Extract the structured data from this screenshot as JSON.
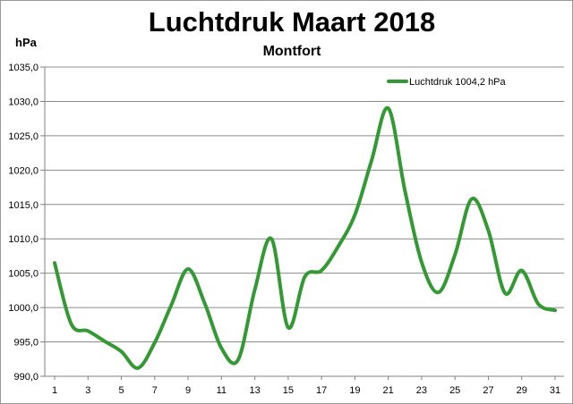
{
  "chart_data": {
    "type": "line",
    "title": "Luchtdruk Maart 2018",
    "subtitle": "Montfort",
    "ylabel": "hPa",
    "xlabel": "",
    "ylim": [
      990,
      1035
    ],
    "xlim": [
      1,
      31
    ],
    "grid": true,
    "legend_position": "top-right",
    "yticks": [
      "990,0",
      "995,0",
      "1000,0",
      "1005,0",
      "1010,0",
      "1015,0",
      "1020,0",
      "1025,0",
      "1030,0",
      "1035,0"
    ],
    "xticks": [
      "1",
      "3",
      "5",
      "7",
      "9",
      "11",
      "13",
      "15",
      "17",
      "19",
      "21",
      "23",
      "25",
      "27",
      "29",
      "31"
    ],
    "series": [
      {
        "name": "Luchtdruk 1004,2 hPa",
        "color": "#339933",
        "x": [
          1,
          2,
          3,
          4,
          5,
          6,
          7,
          8,
          9,
          10,
          11,
          12,
          13,
          14,
          15,
          16,
          17,
          18,
          19,
          20,
          21,
          22,
          23,
          24,
          25,
          26,
          27,
          28,
          29,
          30,
          31
        ],
        "values": [
          1006.5,
          997.6,
          996.6,
          995.1,
          993.6,
          991.2,
          994.9,
          1000.4,
          1005.6,
          1000.6,
          994.1,
          992.4,
          1002.6,
          1010.0,
          997.1,
          1004.5,
          1005.4,
          1008.9,
          1013.5,
          1021.4,
          1029.0,
          1017.0,
          1006.6,
          1002.2,
          1007.7,
          1015.8,
          1011.2,
          1002.1,
          1005.4,
          1000.5,
          999.6
        ]
      }
    ]
  }
}
